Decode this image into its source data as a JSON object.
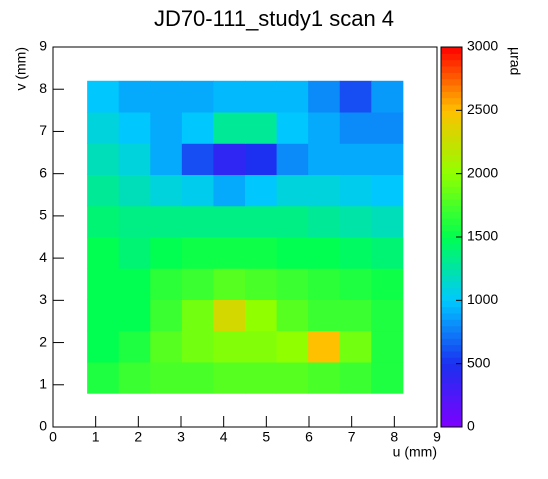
{
  "chart_data": {
    "type": "heatmap",
    "title": "JD70-111_study1 scan 4",
    "x_label": "u (mm)",
    "y_label": "v (mm)",
    "z_label": "µrad",
    "xlim": [
      0,
      9
    ],
    "xticks": [
      0,
      1,
      2,
      3,
      4,
      5,
      6,
      7,
      8,
      9
    ],
    "ylim": [
      0,
      9
    ],
    "yticks": [
      0,
      1,
      2,
      3,
      4,
      5,
      6,
      7,
      8,
      9
    ],
    "zlim": [
      0,
      3000
    ],
    "zticks": [
      0,
      500,
      1000,
      1500,
      2000,
      2500,
      3000
    ],
    "palette": [
      "#7f00ff",
      "#1b30f0",
      "#00c8ff",
      "#00ff50",
      "#90ff00",
      "#ffc000",
      "#ff0000"
    ],
    "xbins": [
      0.8,
      1.54,
      2.28,
      3.02,
      3.76,
      4.5,
      5.24,
      5.98,
      6.72,
      7.46,
      8.2
    ],
    "ybins": [
      0.8,
      1.54,
      2.28,
      3.02,
      3.76,
      4.5,
      5.24,
      5.98,
      6.72,
      7.46,
      8.2
    ],
    "values": [
      [
        1600,
        1700,
        1750,
        1750,
        1800,
        1800,
        1800,
        1750,
        1700,
        1600
      ],
      [
        1500,
        1600,
        1800,
        1900,
        1950,
        1950,
        2000,
        2500,
        1900,
        1600
      ],
      [
        1500,
        1500,
        1700,
        1900,
        2300,
        2000,
        1800,
        1700,
        1700,
        1600
      ],
      [
        1500,
        1500,
        1650,
        1700,
        1800,
        1750,
        1700,
        1650,
        1600,
        1550
      ],
      [
        1500,
        1400,
        1500,
        1550,
        1550,
        1550,
        1500,
        1500,
        1450,
        1400
      ],
      [
        1400,
        1350,
        1350,
        1350,
        1350,
        1350,
        1350,
        1300,
        1250,
        1200
      ],
      [
        1300,
        1200,
        1100,
        1050,
        900,
        1000,
        1100,
        1100,
        1050,
        1000
      ],
      [
        1200,
        1100,
        900,
        600,
        400,
        500,
        800,
        900,
        900,
        900
      ],
      [
        1100,
        1000,
        900,
        1000,
        1300,
        1300,
        1000,
        900,
        800,
        800
      ],
      [
        1000,
        900,
        900,
        900,
        950,
        950,
        950,
        800,
        600,
        850
      ]
    ]
  }
}
